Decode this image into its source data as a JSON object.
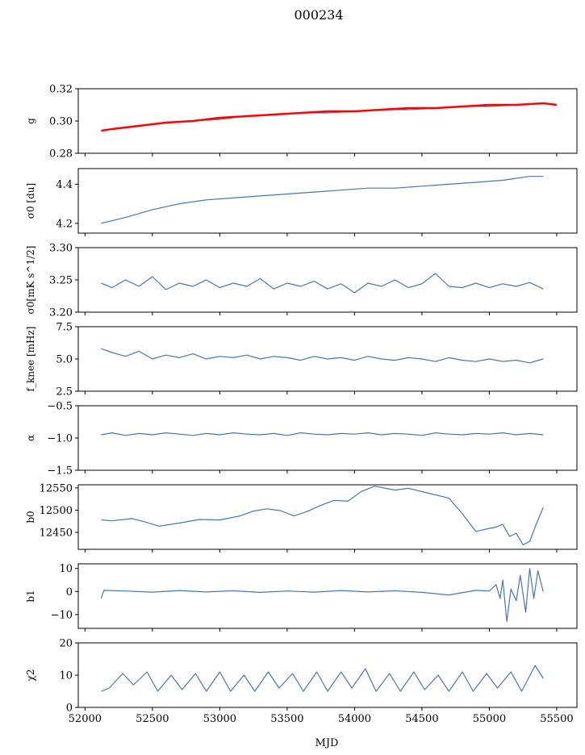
{
  "figure": {
    "title": "000234",
    "xlabel": "MJD"
  },
  "colors": {
    "series": "#4a76a6",
    "fit": "#ff0000",
    "axis": "#000000"
  },
  "chart_data": [
    {
      "type": "line",
      "ylabel": "g",
      "xlim": [
        51950,
        55650
      ],
      "ylim": [
        0.28,
        0.32
      ],
      "yticks": [
        "0.28",
        "0.30",
        "0.32"
      ],
      "series": [
        {
          "color": "#4a76a6",
          "x": [
            52120,
            52200,
            52400,
            52600,
            52800,
            53000,
            53200,
            53400,
            53600,
            53800,
            54000,
            54200,
            54400,
            54600,
            54800,
            55000,
            55200,
            55400
          ],
          "y": [
            0.294,
            0.295,
            0.297,
            0.299,
            0.3,
            0.301,
            0.303,
            0.304,
            0.305,
            0.305,
            0.306,
            0.307,
            0.307,
            0.308,
            0.309,
            0.309,
            0.31,
            0.311
          ]
        },
        {
          "color": "#ff0000",
          "x": [
            52120,
            52200,
            52400,
            52600,
            52800,
            53000,
            53200,
            53400,
            53600,
            53800,
            54000,
            54200,
            54400,
            54600,
            54800,
            55000,
            55200,
            55400,
            55500
          ],
          "y": [
            0.294,
            0.295,
            0.297,
            0.299,
            0.3,
            0.302,
            0.303,
            0.304,
            0.305,
            0.306,
            0.306,
            0.307,
            0.308,
            0.308,
            0.309,
            0.31,
            0.31,
            0.311,
            0.31
          ]
        }
      ]
    },
    {
      "type": "line",
      "ylabel": "σ0 [du]",
      "xlim": [
        51950,
        55650
      ],
      "ylim": [
        4.15,
        4.48
      ],
      "yticks": [
        "4.2",
        "4.4"
      ],
      "series": [
        {
          "color": "#4a76a6",
          "x": [
            52120,
            52300,
            52500,
            52700,
            52900,
            53100,
            53300,
            53500,
            53700,
            53900,
            54100,
            54300,
            54500,
            54700,
            54900,
            55100,
            55300,
            55400
          ],
          "y": [
            4.2,
            4.23,
            4.27,
            4.3,
            4.32,
            4.33,
            4.34,
            4.35,
            4.36,
            4.37,
            4.38,
            4.38,
            4.39,
            4.4,
            4.41,
            4.42,
            4.44,
            4.44
          ]
        }
      ]
    },
    {
      "type": "line",
      "ylabel": "σ0[mK s^1/2]",
      "xlim": [
        51950,
        55650
      ],
      "ylim": [
        3.2,
        3.3
      ],
      "yticks": [
        "3.20",
        "3.25",
        "3.30"
      ],
      "series": [
        {
          "color": "#4a76a6",
          "x": [
            52120,
            52200,
            52300,
            52400,
            52500,
            52600,
            52700,
            52800,
            52900,
            53000,
            53100,
            53200,
            53300,
            53400,
            53500,
            53600,
            53700,
            53800,
            53900,
            54000,
            54100,
            54200,
            54300,
            54400,
            54500,
            54600,
            54700,
            54800,
            54900,
            55000,
            55100,
            55200,
            55300,
            55400
          ],
          "y": [
            3.245,
            3.238,
            3.25,
            3.24,
            3.255,
            3.235,
            3.245,
            3.24,
            3.25,
            3.238,
            3.245,
            3.24,
            3.252,
            3.236,
            3.245,
            3.24,
            3.248,
            3.236,
            3.244,
            3.23,
            3.245,
            3.24,
            3.25,
            3.238,
            3.244,
            3.26,
            3.24,
            3.238,
            3.245,
            3.238,
            3.244,
            3.24,
            3.246,
            3.236
          ]
        }
      ]
    },
    {
      "type": "line",
      "ylabel": "f_knee [mHz]",
      "xlim": [
        51950,
        55650
      ],
      "ylim": [
        2.5,
        7.5
      ],
      "yticks": [
        "2.5",
        "5.0",
        "7.5"
      ],
      "series": [
        {
          "color": "#4a76a6",
          "x": [
            52120,
            52200,
            52300,
            52400,
            52500,
            52600,
            52700,
            52800,
            52900,
            53000,
            53100,
            53200,
            53300,
            53400,
            53500,
            53600,
            53700,
            53800,
            53900,
            54000,
            54100,
            54200,
            54300,
            54400,
            54500,
            54600,
            54700,
            54800,
            54900,
            55000,
            55100,
            55200,
            55300,
            55400
          ],
          "y": [
            5.8,
            5.5,
            5.2,
            5.6,
            5.0,
            5.3,
            5.1,
            5.4,
            5.0,
            5.2,
            5.1,
            5.3,
            5.0,
            5.2,
            5.1,
            4.9,
            5.2,
            5.0,
            5.1,
            4.9,
            5.2,
            5.0,
            4.9,
            5.1,
            5.0,
            4.8,
            5.1,
            4.9,
            4.8,
            5.0,
            4.8,
            4.9,
            4.7,
            5.0
          ]
        }
      ]
    },
    {
      "type": "line",
      "ylabel": "α",
      "xlim": [
        51950,
        55650
      ],
      "ylim": [
        -1.5,
        -0.5
      ],
      "yticks": [
        "−1.5",
        "−1.0",
        "−0.5"
      ],
      "series": [
        {
          "color": "#4a76a6",
          "x": [
            52120,
            52200,
            52300,
            52400,
            52500,
            52600,
            52700,
            52800,
            52900,
            53000,
            53100,
            53200,
            53300,
            53400,
            53500,
            53600,
            53700,
            53800,
            53900,
            54000,
            54100,
            54200,
            54300,
            54400,
            54500,
            54600,
            54700,
            54800,
            54900,
            55000,
            55100,
            55200,
            55300,
            55400
          ],
          "y": [
            -0.95,
            -0.92,
            -0.96,
            -0.93,
            -0.95,
            -0.92,
            -0.94,
            -0.96,
            -0.93,
            -0.95,
            -0.92,
            -0.94,
            -0.95,
            -0.93,
            -0.96,
            -0.92,
            -0.94,
            -0.95,
            -0.93,
            -0.94,
            -0.92,
            -0.95,
            -0.93,
            -0.94,
            -0.96,
            -0.92,
            -0.94,
            -0.95,
            -0.93,
            -0.94,
            -0.92,
            -0.95,
            -0.93,
            -0.95
          ]
        }
      ]
    },
    {
      "type": "line",
      "ylabel": "b0",
      "xlim": [
        51950,
        55650
      ],
      "ylim": [
        12412,
        12557
      ],
      "yticks": [
        "12450",
        "12500",
        "12550"
      ],
      "series": [
        {
          "color": "#4a76a6",
          "x": [
            52120,
            52200,
            52350,
            52450,
            52550,
            52700,
            52850,
            53000,
            53150,
            53250,
            53350,
            53450,
            53550,
            53650,
            53750,
            53850,
            53950,
            54050,
            54150,
            54300,
            54400,
            54550,
            54700,
            54800,
            54900,
            55000,
            55050,
            55100,
            55150,
            55200,
            55250,
            55300,
            55350,
            55400
          ],
          "y": [
            12478,
            12476,
            12481,
            12473,
            12464,
            12471,
            12479,
            12478,
            12487,
            12498,
            12503,
            12499,
            12487,
            12497,
            12511,
            12522,
            12520,
            12542,
            12554,
            12545,
            12549,
            12538,
            12527,
            12492,
            12452,
            12459,
            12462,
            12468,
            12441,
            12448,
            12422,
            12430,
            12470,
            12506
          ]
        }
      ]
    },
    {
      "type": "line",
      "ylabel": "b1",
      "xlim": [
        51950,
        55650
      ],
      "ylim": [
        -16,
        12
      ],
      "yticks": [
        "−10",
        "0",
        "10"
      ],
      "series": [
        {
          "color": "#4a76a6",
          "x": [
            52120,
            52140,
            52300,
            52500,
            52700,
            52900,
            53100,
            53300,
            53500,
            53700,
            53900,
            54100,
            54300,
            54500,
            54700,
            54900,
            55000,
            55050,
            55080,
            55100,
            55130,
            55160,
            55200,
            55230,
            55270,
            55300,
            55330,
            55360,
            55400
          ],
          "y": [
            -3,
            0.5,
            0.2,
            -0.3,
            0.4,
            -0.2,
            0.3,
            -0.4,
            0.2,
            -0.3,
            0.4,
            -0.2,
            0.3,
            -0.4,
            -1.5,
            0.5,
            0.2,
            3,
            -3,
            5,
            -13,
            1,
            -4,
            7,
            -9,
            10,
            -3,
            9,
            0
          ]
        }
      ]
    },
    {
      "type": "line",
      "ylabel": "χ2",
      "xlim": [
        51950,
        55650
      ],
      "ylim": [
        0,
        20
      ],
      "yticks": [
        "0",
        "10",
        "20"
      ],
      "xticks": [
        "52000",
        "52500",
        "53000",
        "53500",
        "54000",
        "54500",
        "55000",
        "55500"
      ],
      "series": [
        {
          "color": "#4a76a6",
          "x": [
            52120,
            52180,
            52280,
            52360,
            52460,
            52540,
            52640,
            52720,
            52820,
            52900,
            53000,
            53080,
            53180,
            53260,
            53360,
            53440,
            53540,
            53620,
            53720,
            53800,
            53900,
            53980,
            54080,
            54160,
            54260,
            54340,
            54440,
            54520,
            54620,
            54700,
            54800,
            54880,
            54980,
            55060,
            55160,
            55240,
            55340,
            55400
          ],
          "y": [
            5,
            6,
            10.5,
            7,
            11,
            5,
            10,
            5.5,
            10.5,
            5,
            11,
            5,
            10,
            5,
            11,
            6,
            10.5,
            5,
            11,
            5,
            11,
            6,
            12,
            5,
            10.5,
            5,
            11,
            5.5,
            10,
            5,
            11,
            5,
            10.5,
            6,
            11,
            5,
            13,
            9
          ]
        }
      ]
    }
  ]
}
